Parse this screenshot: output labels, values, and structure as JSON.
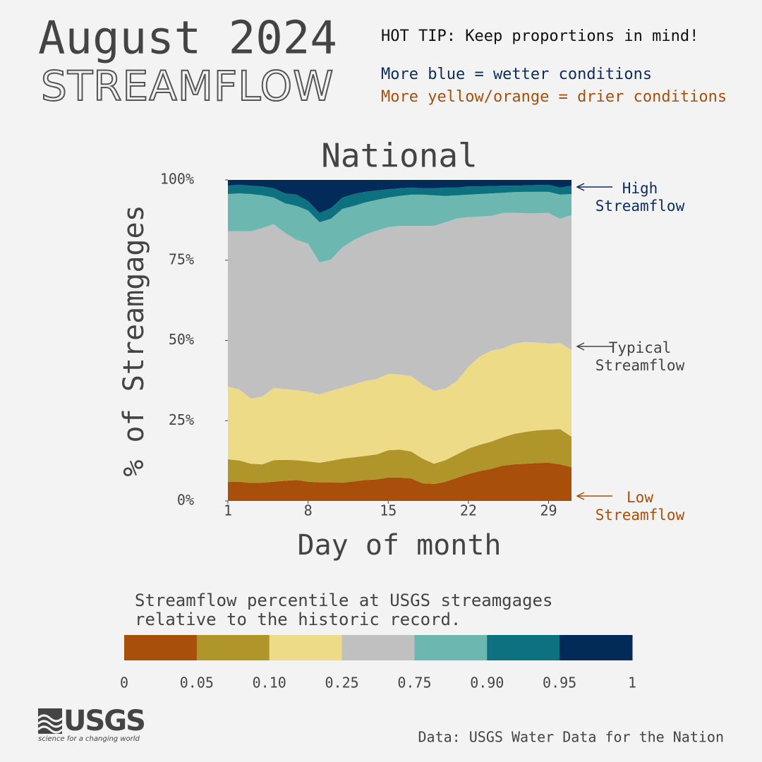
{
  "header": {
    "title": "August 2024",
    "subtitle": "STREAMFLOW",
    "tip": "HOT TIP: Keep proportions in mind!",
    "wet_note": "More blue = wetter conditions",
    "dry_note": "More yellow/orange = drier conditions"
  },
  "chart_data": {
    "type": "stacked-area",
    "title": "National",
    "x_label": "Day of month",
    "y_label": "% of Streamgages",
    "x": [
      1,
      2,
      3,
      4,
      5,
      6,
      7,
      8,
      9,
      10,
      11,
      12,
      13,
      14,
      15,
      16,
      17,
      18,
      19,
      20,
      21,
      22,
      23,
      24,
      25,
      26,
      27,
      28,
      29,
      30,
      31
    ],
    "xlim": [
      1,
      31
    ],
    "xticks": [
      1,
      8,
      15,
      22,
      29
    ],
    "ylim": [
      0,
      100
    ],
    "yticks": [
      {
        "value": 0,
        "label": "0%"
      },
      {
        "value": 25,
        "label": "25%"
      },
      {
        "value": 50,
        "label": "50%"
      },
      {
        "value": 75,
        "label": "75%"
      },
      {
        "value": 100,
        "label": "100%"
      }
    ],
    "series": [
      {
        "color": "#a84f0c",
        "values": [
          5.9,
          6.0,
          5.6,
          5.7,
          6.0,
          6.3,
          6.5,
          6.0,
          5.8,
          5.8,
          5.7,
          6.1,
          6.5,
          6.7,
          7.3,
          7.3,
          7.0,
          5.5,
          5.3,
          6.0,
          7.2,
          8.4,
          9.3,
          10.0,
          11.0,
          11.4,
          11.6,
          11.8,
          11.9,
          11.4,
          10.5
        ]
      },
      {
        "color": "#b0962a",
        "values": [
          7.1,
          6.6,
          6.0,
          5.7,
          6.7,
          6.5,
          6.2,
          6.3,
          6.1,
          6.7,
          7.5,
          7.5,
          7.5,
          7.8,
          8.5,
          8.7,
          8.4,
          7.7,
          6.3,
          6.7,
          7.3,
          7.9,
          8.2,
          8.5,
          8.8,
          9.5,
          9.9,
          10.2,
          10.3,
          11.0,
          9.5
        ]
      },
      {
        "color": "#eedb87",
        "values": [
          22.6,
          22.1,
          20.3,
          21.1,
          22.5,
          22.0,
          21.8,
          21.7,
          21.3,
          21.8,
          22.1,
          22.7,
          23.4,
          23.5,
          23.8,
          23.4,
          23.5,
          23.1,
          22.7,
          22.3,
          22.9,
          25.5,
          27.5,
          28.3,
          27.7,
          28.1,
          28.0,
          27.3,
          26.8,
          26.8,
          27.0
        ]
      },
      {
        "color": "#c0c0c0",
        "values": [
          48.4,
          49.3,
          52.1,
          52.5,
          51.0,
          48.7,
          46.8,
          46.2,
          41.1,
          40.9,
          43.7,
          45.0,
          45.6,
          46.2,
          45.7,
          46.3,
          46.8,
          49.4,
          51.4,
          51.8,
          50.6,
          46.6,
          43.6,
          42.0,
          42.2,
          40.8,
          40.1,
          40.3,
          40.7,
          38.7,
          42.0
        ]
      },
      {
        "color": "#6cb8b0",
        "values": [
          11.6,
          11.8,
          11.6,
          10.2,
          8.3,
          9.2,
          10.6,
          10.3,
          12.5,
          12.7,
          12.0,
          10.6,
          10.0,
          9.6,
          9.2,
          9.3,
          9.7,
          9.7,
          9.5,
          8.2,
          7.2,
          7.0,
          7.0,
          7.0,
          6.3,
          6.4,
          6.7,
          6.7,
          6.6,
          7.5,
          6.6
        ]
      },
      {
        "color": "#0e7180",
        "values": [
          2.6,
          2.7,
          2.6,
          2.8,
          2.9,
          3.1,
          3.5,
          2.9,
          2.9,
          3.3,
          3.5,
          3.7,
          3.3,
          2.9,
          2.6,
          2.4,
          2.2,
          2.0,
          2.2,
          2.6,
          2.4,
          2.6,
          2.4,
          2.3,
          2.2,
          2.0,
          2.0,
          2.1,
          2.2,
          2.2,
          2.6
        ]
      },
      {
        "color": "#022b5a",
        "values": [
          1.8,
          1.5,
          1.8,
          2.0,
          2.6,
          4.2,
          4.6,
          6.6,
          10.3,
          8.8,
          5.5,
          4.4,
          3.7,
          3.3,
          2.9,
          2.6,
          2.4,
          2.6,
          2.6,
          2.4,
          2.4,
          2.0,
          2.0,
          1.9,
          1.8,
          1.8,
          1.7,
          1.6,
          1.5,
          2.4,
          1.8
        ]
      }
    ],
    "annotations": [
      {
        "lines": [
          "High",
          "Streamflow"
        ]
      },
      {
        "lines": [
          "Typical",
          "Streamflow"
        ]
      },
      {
        "lines": [
          "Low",
          "Streamflow"
        ]
      }
    ],
    "colorbar": {
      "title": [
        "Streamflow percentile at USGS streamgages",
        "relative to the historic record."
      ],
      "ticks": [
        0,
        0.05,
        {
          "value": 0.1,
          "label": "0.10"
        },
        0.25,
        0.75,
        {
          "value": 0.9,
          "label": "0.90"
        },
        0.95,
        1
      ]
    }
  },
  "footer": {
    "logo": "USGS",
    "tagline": "science for a changing world",
    "source": "Data: USGS Water Data for the Nation"
  }
}
